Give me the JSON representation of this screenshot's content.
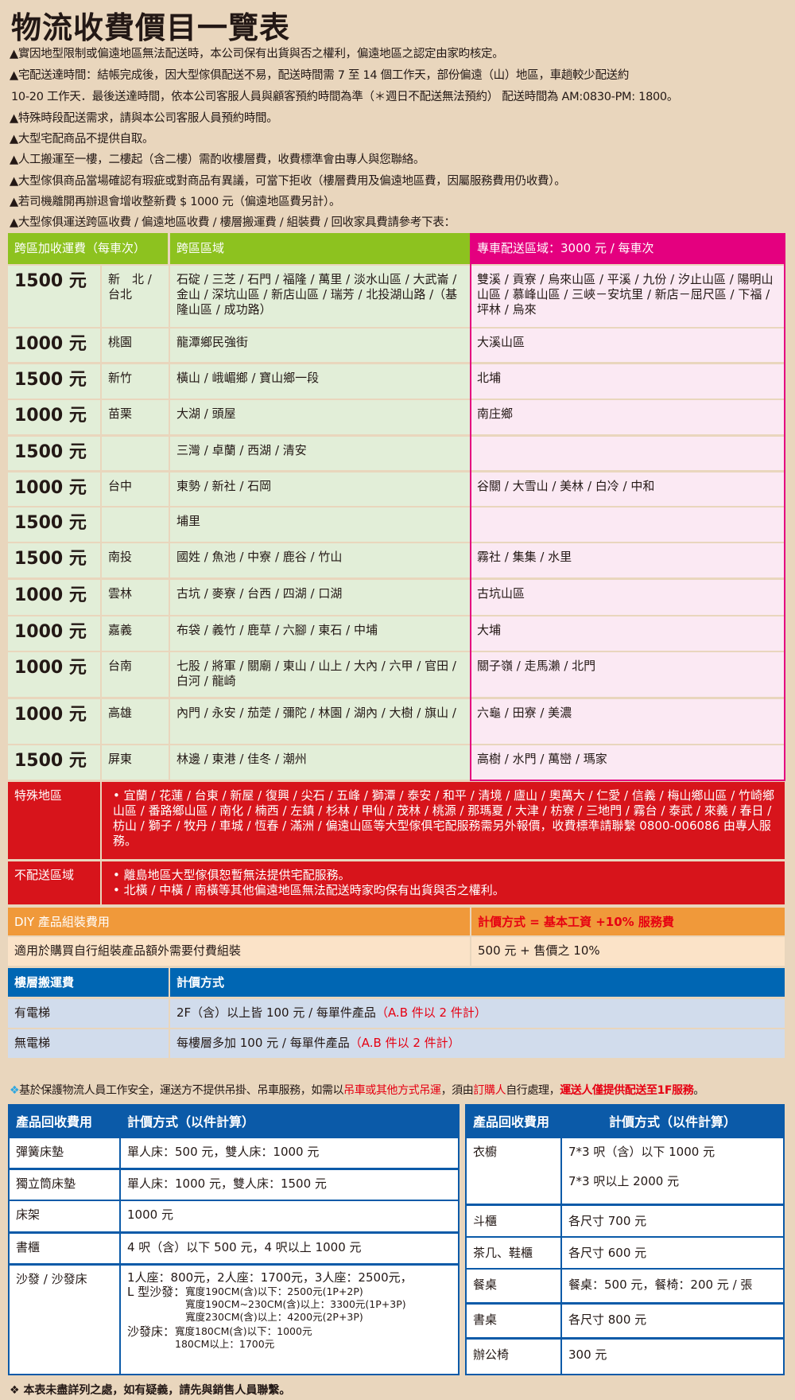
{
  "title": "物流收費價目一覽表",
  "notes": [
    "▲實因地型限制或偏遠地區無法配送時，本公司保有出貨與否之權利，偏遠地區之認定由家昀核定。",
    "▲宅配送達時間：結帳完成後，因大型傢俱配送不易，配送時間需 7 至 14 個工作天，部份偏遠（山）地區，車趟較少配送約",
    "10-20 工作天．最後送達時間，依本公司客服人員與顧客預約時間為準（＊週日不配送無法預約） 配送時間為 AM:0830-PM: 1800。",
    "▲特殊時段配送需求，請與本公司客服人員預約時間。",
    "▲大型宅配商品不提供自取。",
    "▲人工搬運至一樓，二樓起（含二樓）需酌收樓層費，收費標準會由專人與您聯絡。",
    "▲大型傢俱商品當場確認有瑕疵或對商品有異議，可當下拒收（樓層費用及偏遠地區費，因屬服務費用仍收費）。",
    "▲若司機離開再辦退會增收整新費 $ 1000 元（偏遠地區費另計）。",
    "▲大型傢俱運送跨區收費 / 偏遠地區收費 / 樓層搬運費 / 組裝費 / 回收家具費請參考下表："
  ],
  "zones": {
    "header_fee": "跨區加收運費（每車次）",
    "header_area": "跨區區域",
    "header_special": "專車配送區域：3000 元 / 每車次",
    "rows": [
      {
        "price": "1500 元",
        "city": "新　北 / 台北",
        "areas": "石碇 / 三芝 / 石門 / 福隆 / 萬里 / 淡水山區 / 大武崙 / 金山 / 深坑山區 / 新店山區 / 瑞芳 / 北投湖山路 /（基隆山區 / 成功路）",
        "special": "雙溪 / 貢寮 / 烏來山區 / 平溪 / 九份 / 汐止山區 / 陽明山山區 / 慕峰山區 / 三峽－安坑里 / 新店－屈尺區 / 下福 / 坪林 / 烏來"
      },
      {
        "price": "1000 元",
        "city": "桃園",
        "areas": "龍潭鄉民強街",
        "special": "大溪山區"
      },
      {
        "price": "1500 元",
        "city": "新竹",
        "areas": "橫山 / 峨嵋鄉 / 寶山鄉一段",
        "special": "北埔"
      },
      {
        "price": "1000 元",
        "city": "苗栗",
        "areas": "大湖 / 頭屋",
        "special": "南庄鄉"
      },
      {
        "price": "1500 元",
        "city": "",
        "areas": "三灣 / 卓蘭 / 西湖 / 清安",
        "special": ""
      },
      {
        "price": "1000 元",
        "city": "台中",
        "areas": "東勢 / 新社 / 石岡",
        "special": "谷關 / 大雪山 / 美林 / 白冷 / 中和"
      },
      {
        "price": "1500 元",
        "city": "",
        "areas": "埔里",
        "special": ""
      },
      {
        "price": "1500 元",
        "city": "南投",
        "areas": "國姓 / 魚池 / 中寮 / 鹿谷 / 竹山",
        "special": "霧社 / 集集 / 水里"
      },
      {
        "price": "1000 元",
        "city": "雲林",
        "areas": "古坑 / 麥寮 / 台西 / 四湖 / 口湖",
        "special": "古坑山區"
      },
      {
        "price": "1000 元",
        "city": "嘉義",
        "areas": "布袋 / 義竹 / 鹿草 / 六腳 / 東石 / 中埔",
        "special": "大埔"
      },
      {
        "price": "1000 元",
        "city": "台南",
        "areas": "七股 / 將軍 / 關廟 / 東山 / 山上 / 大內 / 六甲 / 官田 / 白河 / 龍崎",
        "special": "關子嶺 / 走馬瀨 / 北門"
      },
      {
        "price": "1000 元",
        "city": "高雄",
        "areas": "內門 / 永安 / 茄萣 / 彌陀 / 林園 / 湖內 / 大樹 / 旗山 /",
        "special": "六龜 / 田寮 / 美濃"
      },
      {
        "price": "1500 元",
        "city": "屏東",
        "areas": "林邊 / 東港 / 佳冬 / 潮州",
        "special": "高樹 / 水門 / 萬巒 / 瑪家"
      }
    ],
    "special_label": "特殊地區",
    "special_text": "• 宜蘭 / 花蓮 / 台東 / 新屋 / 復興 / 尖石 / 五峰 / 獅潭 / 泰安 / 和平 / 清境 / 廬山 / 奧萬大 / 仁愛 / 信義 / 梅山鄉山區 / 竹崎鄉山區 / 番路鄉山區 / 南化 / 楠西 / 左鎮 / 杉林 / 甲仙 / 茂林 / 桃源 / 那瑪夏 / 大津 / 枋寮 / 三地門 / 霧台 / 泰武 / 來義 / 春日 / 枋山 / 獅子 / 牧丹 / 車城 / 恆春 / 滿洲 / 偏遠山區等大型傢俱宅配服務需另外報價，收費標準請聯繫 0800-006086 由專人服務。",
    "nodelivery_label": "不配送區域",
    "nodelivery_items": [
      "• 離島地區大型傢俱恕暫無法提供宅配服務。",
      "• 北橫 / 中橫 / 南橫等其他偏遠地區無法配送時家昀保有出貨與否之權利。"
    ]
  },
  "diy": {
    "header": "DIY 產品組裝費用",
    "header_price": "計價方式 = 基本工資 +10% 服務費",
    "desc": "適用於購買自行組裝產品額外需要付費組裝",
    "price": "500 元 + 售價之 10%"
  },
  "floor": {
    "header": "樓層搬運費",
    "header_price": "計價方式",
    "rows": [
      {
        "label": "有電梯",
        "text": "2F（含）以上皆 100 元 / 每單件產品",
        "note": "（A.B 件以 2 件計）"
      },
      {
        "label": "無電梯",
        "text": "每樓層多加 100 元 / 每單件產品",
        "note": "（A.B 件以 2 件計）"
      }
    ]
  },
  "safety": {
    "a": "基於保護物流人員工作安全，運送方不提供吊掛、吊車服務，如需以",
    "b": "吊車或其他方式吊運",
    "c": "，須由",
    "d": "訂購人",
    "e": "自行處理，",
    "f": "運送人僅提供配送至1F服務",
    "g": "。"
  },
  "recycle_left": {
    "h1": "產品回收費用",
    "h2": "計價方式（以件計算）",
    "rows": [
      {
        "item": "彈簧床墊",
        "price": "單人床：500 元，雙人床：1000 元"
      },
      {
        "item": "獨立筒床墊",
        "price": "單人床：1000 元，雙人床：1500 元"
      },
      {
        "item": "床架",
        "price": "1000 元"
      },
      {
        "item": "書櫃",
        "price": "4 呎（含）以下 500 元，4 呎以上 1000 元"
      }
    ],
    "sofa": {
      "item": "沙發 / 沙發床",
      "line1": "1人座：800元，2人座：1700元，3人座：2500元，",
      "l_label": "L 型沙發：",
      "l1": "寬度190CM(含)以下：2500元(1P+2P)",
      "l2": "寬度190CM~230CM(含)以上：3300元(1P+3P)",
      "l3": "寬度230CM(含)以上：4200元(2P+3P)",
      "bed_label": "沙發床：",
      "b1": "寬度180CM(含)以下：1000元",
      "b2": "180CM以上：1700元"
    }
  },
  "recycle_right": {
    "h1": "產品回收費用",
    "h2": "計價方式（以件計算）",
    "wardrobe": {
      "item": "衣櫥",
      "p1": "7*3 呎（含）以下 1000 元",
      "p2": "7*3 呎以上 2000 元"
    },
    "rows": [
      {
        "item": "斗櫃",
        "price": "各尺寸 700 元"
      },
      {
        "item": "茶几、鞋櫃",
        "price": "各尺寸 600 元"
      },
      {
        "item": "餐桌",
        "price": "餐桌：500 元，餐椅：200 元 / 張"
      },
      {
        "item": "書桌",
        "price": "各尺寸 800 元"
      },
      {
        "item": "辦公椅",
        "price": "300 元"
      }
    ]
  },
  "footer": "本表未盡詳列之處，如有疑義，請先與銷售人員聯繫。",
  "colors": {
    "green": "#8dc21f",
    "pink": "#e4007f",
    "red": "#d7141b",
    "orange": "#f0993a",
    "blue": "#0066b3"
  }
}
